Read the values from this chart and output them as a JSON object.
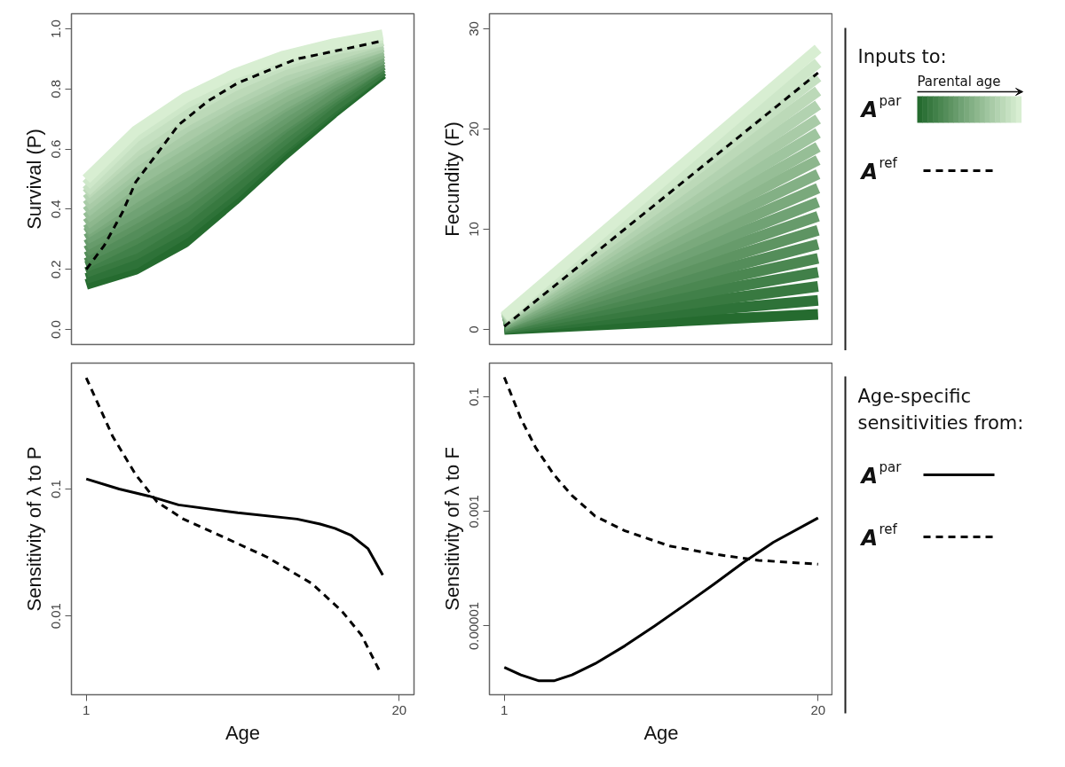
{
  "chart_data": [
    {
      "type": "line",
      "ylabel": "Survival (P)",
      "x": [
        1,
        4,
        7,
        10,
        13,
        16,
        19
      ],
      "xlim": [
        0.1,
        20.9
      ],
      "ylim": [
        -0.05,
        1.05
      ],
      "yticks": [
        {
          "value": 0,
          "label": "0.0"
        },
        {
          "value": 0.2,
          "label": "0.2"
        },
        {
          "value": 0.4,
          "label": "0.4"
        },
        {
          "value": 0.6,
          "label": "0.6"
        },
        {
          "value": 0.8,
          "label": "0.8"
        },
        {
          "value": 1,
          "label": "1.0"
        }
      ],
      "tick_labels": "y",
      "line_style": "solid",
      "series": [
        {
          "color": "#256b2f",
          "values": [
            0.15,
            0.2,
            0.29,
            0.43,
            0.58,
            0.72,
            0.85
          ]
        },
        {
          "color": "#2e7238",
          "values": [
            0.17,
            0.22,
            0.32,
            0.45,
            0.6,
            0.73,
            0.86
          ]
        },
        {
          "color": "#387940",
          "values": [
            0.19,
            0.25,
            0.34,
            0.47,
            0.61,
            0.74,
            0.86
          ]
        },
        {
          "color": "#418049",
          "values": [
            0.21,
            0.27,
            0.37,
            0.5,
            0.63,
            0.76,
            0.87
          ]
        },
        {
          "color": "#4b8751",
          "values": [
            0.22,
            0.3,
            0.39,
            0.52,
            0.65,
            0.77,
            0.88
          ]
        },
        {
          "color": "#548d5a",
          "values": [
            0.24,
            0.32,
            0.42,
            0.54,
            0.67,
            0.78,
            0.88
          ]
        },
        {
          "color": "#5e9462",
          "values": [
            0.26,
            0.35,
            0.44,
            0.56,
            0.68,
            0.79,
            0.89
          ]
        },
        {
          "color": "#679b6b",
          "values": [
            0.28,
            0.37,
            0.47,
            0.59,
            0.7,
            0.81,
            0.9
          ]
        },
        {
          "color": "#70a274",
          "values": [
            0.3,
            0.39,
            0.49,
            0.61,
            0.72,
            0.82,
            0.9
          ]
        },
        {
          "color": "#7aa97c",
          "values": [
            0.32,
            0.42,
            0.52,
            0.63,
            0.74,
            0.83,
            0.91
          ]
        },
        {
          "color": "#83b085",
          "values": [
            0.33,
            0.44,
            0.54,
            0.65,
            0.75,
            0.84,
            0.92
          ]
        },
        {
          "color": "#8db78d",
          "values": [
            0.35,
            0.47,
            0.57,
            0.67,
            0.77,
            0.85,
            0.92
          ]
        },
        {
          "color": "#96be96",
          "values": [
            0.37,
            0.49,
            0.59,
            0.7,
            0.79,
            0.87,
            0.93
          ]
        },
        {
          "color": "#9fc59f",
          "values": [
            0.39,
            0.52,
            0.62,
            0.72,
            0.81,
            0.88,
            0.94
          ]
        },
        {
          "color": "#a9cba7",
          "values": [
            0.41,
            0.54,
            0.64,
            0.74,
            0.82,
            0.89,
            0.94
          ]
        },
        {
          "color": "#b2d2b0",
          "values": [
            0.43,
            0.56,
            0.67,
            0.76,
            0.84,
            0.9,
            0.95
          ]
        },
        {
          "color": "#bcd9b8",
          "values": [
            0.45,
            0.59,
            0.69,
            0.78,
            0.86,
            0.91,
            0.96
          ]
        },
        {
          "color": "#c5e0c1",
          "values": [
            0.46,
            0.61,
            0.72,
            0.81,
            0.88,
            0.93,
            0.96
          ]
        },
        {
          "color": "#cee7c9",
          "values": [
            0.48,
            0.64,
            0.75,
            0.83,
            0.89,
            0.94,
            0.97
          ]
        },
        {
          "color": "#d8eed2",
          "values": [
            0.5,
            0.66,
            0.77,
            0.85,
            0.91,
            0.95,
            0.98
          ]
        },
        {
          "color": "#000000",
          "line_style": "dashed",
          "x": [
            1,
            2.1,
            3.2,
            4,
            5.1,
            6.6,
            8.4,
            10.2,
            12,
            13.8,
            15.6,
            17.3,
            19
          ],
          "values": [
            0.2,
            0.28,
            0.39,
            0.49,
            0.57,
            0.68,
            0.76,
            0.82,
            0.86,
            0.9,
            0.92,
            0.94,
            0.96
          ]
        }
      ]
    },
    {
      "type": "line",
      "ylabel": "Fecundity (F)",
      "x": [
        1,
        20
      ],
      "xlim": [
        0.1,
        20.9
      ],
      "ylim": [
        -1.5,
        31.5
      ],
      "yticks": [
        0,
        10,
        20,
        30
      ],
      "tick_labels": "y",
      "line_style": "solid",
      "legend": "right",
      "legend_title": "Inputs to:",
      "annotations": [
        "Parental age"
      ],
      "series": [
        {
          "name": "A$^{par}$",
          "color": "#256b2f",
          "values": [
            0.0,
            1.5
          ]
        },
        {
          "color": "#2e7238",
          "values": [
            0.1,
            2.9
          ]
        },
        {
          "color": "#387940",
          "values": [
            0.1,
            4.3
          ]
        },
        {
          "color": "#418049",
          "values": [
            0.2,
            5.7
          ]
        },
        {
          "color": "#4b8751",
          "values": [
            0.3,
            7.1
          ]
        },
        {
          "color": "#548d5a",
          "values": [
            0.3,
            8.5
          ]
        },
        {
          "color": "#5e9462",
          "values": [
            0.4,
            9.9
          ]
        },
        {
          "color": "#679b6b",
          "values": [
            0.5,
            11.3
          ]
        },
        {
          "color": "#70a274",
          "values": [
            0.5,
            12.7
          ]
        },
        {
          "color": "#7aa97c",
          "values": [
            0.6,
            14.1
          ]
        },
        {
          "color": "#83b085",
          "values": [
            0.7,
            15.5
          ]
        },
        {
          "color": "#8db78d",
          "values": [
            0.8,
            16.9
          ]
        },
        {
          "color": "#96be96",
          "values": [
            0.8,
            18.2
          ]
        },
        {
          "color": "#9fc59f",
          "values": [
            0.9,
            19.6
          ]
        },
        {
          "color": "#a9cba7",
          "values": [
            1.0,
            21.0
          ]
        },
        {
          "color": "#b2d2b0",
          "values": [
            1.0,
            22.4
          ]
        },
        {
          "color": "#bcd9b8",
          "values": [
            1.1,
            23.8
          ]
        },
        {
          "color": "#c5e0c1",
          "values": [
            1.2,
            25.2
          ]
        },
        {
          "color": "#cee7c9",
          "values": [
            1.2,
            26.6
          ]
        },
        {
          "color": "#d8eed2",
          "values": [
            1.3,
            28.0
          ]
        },
        {
          "name": "A$^{ref}$",
          "color": "#000000",
          "line_style": "dashed",
          "values": [
            0.3,
            25.6
          ]
        }
      ]
    },
    {
      "type": "line",
      "xlabel": "Age",
      "ylabel": "Sensitivity of λ to P",
      "xlim": [
        0.1,
        20.9
      ],
      "xticks": [
        1,
        20
      ],
      "ylim": [
        0.0024,
        0.98
      ],
      "yticks": [
        0.01,
        0.1
      ],
      "log": true,
      "line_style": "solid",
      "legend": "right",
      "legend_title": "Age-specific sensitivities from:",
      "series": [
        {
          "name": "A$^{par}$",
          "color": "#000000",
          "x": [
            1,
            3,
            4.8,
            6.6,
            10.2,
            13.8,
            15.2,
            16.1,
            17.1,
            18.1,
            19
          ],
          "values": [
            0.12,
            0.1,
            0.088,
            0.075,
            0.065,
            0.058,
            0.053,
            0.049,
            0.043,
            0.034,
            0.021
          ]
        },
        {
          "name": "A$^{ref}$",
          "color": "#000000",
          "line_style": "dashed",
          "x": [
            1,
            2.6,
            4,
            5.3,
            6.9,
            9.3,
            12,
            14.7,
            16.5,
            17.7,
            18.9
          ],
          "values": [
            0.75,
            0.26,
            0.13,
            0.079,
            0.058,
            0.042,
            0.029,
            0.018,
            0.011,
            0.0071,
            0.0035
          ]
        }
      ]
    },
    {
      "type": "line",
      "xlabel": "Age",
      "ylabel": "Sensitivity of λ to F",
      "xlim": [
        0.1,
        20.9
      ],
      "xticks": [
        1,
        20
      ],
      "ylim": [
        6.3e-07,
        0.39
      ],
      "yticks": [
        {
          "value": 1e-05,
          "label": "0.00001"
        },
        {
          "value": 0.001,
          "label": "0.001"
        },
        {
          "value": 0.1,
          "label": "0.1"
        }
      ],
      "log": true,
      "line_style": "solid",
      "series": [
        {
          "color": "#000000",
          "x": [
            1,
            2,
            3.1,
            4,
            5.1,
            6.5,
            8.3,
            10.1,
            11.9,
            13.7,
            15.5,
            17.3,
            20
          ],
          "values": [
            1.9e-06,
            1.4e-06,
            1.1e-06,
            1.1e-06,
            1.4e-06,
            2.2e-06,
            4.5e-06,
            1e-05,
            2.3e-05,
            5.4e-05,
            0.00013,
            0.00029,
            0.00077
          ]
        },
        {
          "color": "#000000",
          "line_style": "dashed",
          "x": [
            1,
            2,
            2.9,
            4,
            5.1,
            6.5,
            8.3,
            11,
            13.7,
            16.4,
            20
          ],
          "values": [
            0.22,
            0.042,
            0.013,
            0.0044,
            0.0019,
            0.00083,
            0.00046,
            0.00025,
            0.00018,
            0.00014,
            0.00012
          ]
        }
      ]
    }
  ]
}
